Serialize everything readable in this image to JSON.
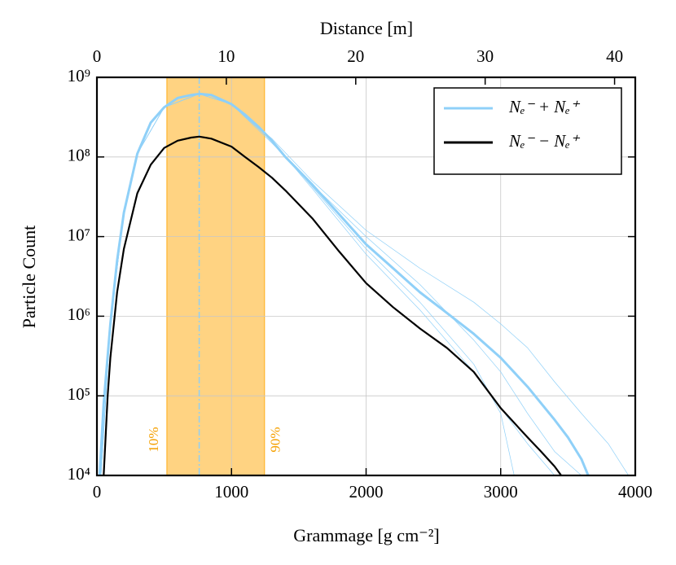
{
  "chart_data": {
    "type": "line",
    "xlabel": "Grammage [g cm⁻²]",
    "ylabel": "Particle Count",
    "x2label": "Distance [m]",
    "xlim": [
      0,
      4000
    ],
    "xticks": [
      0,
      1000,
      2000,
      3000,
      4000
    ],
    "x2lim": [
      0,
      41.6
    ],
    "x2ticks": [
      0,
      10,
      20,
      30,
      40
    ],
    "ylim": [
      10000,
      1000000000
    ],
    "yscale": "log",
    "yticks": [
      {
        "value": 10000,
        "label": "10⁴"
      },
      {
        "value": 100000,
        "label": "10⁵"
      },
      {
        "value": 1000000,
        "label": "10⁶"
      },
      {
        "value": 10000000,
        "label": "10⁷"
      },
      {
        "value": 100000000,
        "label": "10⁸"
      },
      {
        "value": 1000000000,
        "label": "10⁹"
      }
    ],
    "grid": true,
    "legend": "upper right",
    "band": {
      "range": [
        520,
        1245
      ],
      "color": "#ffb52e",
      "labels": [
        "10%",
        "90%"
      ],
      "label_color": "#f5a000"
    },
    "peak_x": 760,
    "series": [
      {
        "color": "#8fd0f8",
        "width": 0.7,
        "x": [
          30,
          100,
          200,
          300,
          500,
          760,
          1000,
          1300,
          1600,
          2000,
          2400,
          2800,
          3000,
          3200,
          3400,
          3600,
          3800,
          3950
        ],
        "values": [
          10000,
          800000,
          20000000,
          110000000,
          420000000,
          620000000,
          460000000,
          170000000,
          50000000,
          12000000,
          4000000,
          1500000,
          800000,
          400000,
          150000,
          60000,
          25000,
          10000
        ]
      },
      {
        "color": "#8fd0f8",
        "width": 0.7,
        "x": [
          30,
          100,
          200,
          300,
          500,
          760,
          1000,
          1300,
          1600,
          2000,
          2400,
          2800,
          3000,
          3200,
          3400
        ],
        "values": [
          10000,
          800000,
          20000000,
          110000000,
          420000000,
          620000000,
          460000000,
          160000000,
          40000000,
          6000000,
          1200000,
          200000,
          70000,
          25000,
          10000
        ]
      },
      {
        "color": "#8fd0f8",
        "width": 0.7,
        "x": [
          30,
          100,
          200,
          300,
          500,
          760,
          1000,
          1300,
          1600,
          2000,
          2400,
          2800,
          3000,
          3200,
          3400,
          3600
        ],
        "values": [
          10000,
          800000,
          20000000,
          110000000,
          420000000,
          620000000,
          460000000,
          150000000,
          45000000,
          10000000,
          2500000,
          500000,
          200000,
          60000,
          20000,
          10000
        ]
      },
      {
        "color": "#8fd0f8",
        "width": 0.7,
        "x": [
          30,
          100,
          200,
          300,
          500,
          760,
          1000,
          1300,
          1600,
          2000,
          2400,
          2800,
          3000,
          3100
        ],
        "values": [
          10000,
          800000,
          20000000,
          110000000,
          420000000,
          620000000,
          460000000,
          160000000,
          42000000,
          7000000,
          1500000,
          250000,
          60000,
          10000
        ]
      },
      {
        "name": "Nₑ⁻ + Nₑ⁺",
        "color": "#8fd0f8",
        "width": 3,
        "x": [
          20,
          50,
          100,
          150,
          200,
          300,
          400,
          500,
          600,
          700,
          760,
          850,
          1000,
          1100,
          1200,
          1300,
          1400,
          1600,
          1800,
          2000,
          2200,
          2400,
          2600,
          2800,
          3000,
          3200,
          3400,
          3500,
          3600,
          3650
        ],
        "values": [
          10000,
          80000,
          800000,
          5000000,
          20000000,
          110000000,
          270000000,
          420000000,
          550000000,
          600000000,
          620000000,
          600000000,
          460000000,
          340000000,
          240000000,
          160000000,
          100000000,
          45000000,
          19000000,
          8000000,
          4000000,
          2000000,
          1100000,
          600000,
          300000,
          130000,
          50000,
          30000,
          16000,
          10000
        ]
      },
      {
        "name": "Nₑ⁻ − Nₑ⁺",
        "color": "#000000",
        "width": 2.2,
        "x": [
          50,
          80,
          100,
          150,
          200,
          300,
          400,
          500,
          600,
          700,
          760,
          850,
          1000,
          1100,
          1200,
          1300,
          1400,
          1600,
          1800,
          2000,
          2200,
          2400,
          2600,
          2800,
          3000,
          3200,
          3300,
          3400,
          3450
        ],
        "values": [
          10000,
          100000,
          300000,
          2000000,
          7000000,
          35000000,
          80000000,
          130000000,
          160000000,
          175000000,
          180000000,
          170000000,
          135000000,
          100000000,
          75000000,
          55000000,
          38000000,
          17000000,
          6500000,
          2600000,
          1300000,
          700000,
          400000,
          200000,
          70000,
          30000,
          20000,
          13000,
          10000
        ]
      }
    ]
  }
}
